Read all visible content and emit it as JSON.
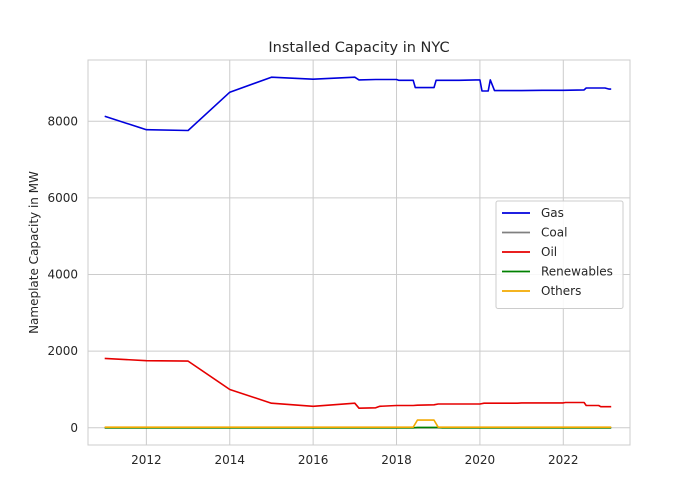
{
  "chart_data": {
    "type": "line",
    "title": "Installed Capacity in NYC",
    "xlabel": "",
    "ylabel": "Nameplate Capacity in MW",
    "xlim": [
      2010.6,
      2023.6
    ],
    "ylim": [
      -450,
      9600
    ],
    "xticks": [
      2012,
      2014,
      2016,
      2018,
      2020,
      2022
    ],
    "yticks": [
      0,
      2000,
      4000,
      6000,
      8000
    ],
    "grid": true,
    "legend_position": "center-right",
    "series": [
      {
        "name": "Gas",
        "color": "#0000dd",
        "x": [
          2011,
          2012,
          2013,
          2014,
          2015,
          2016,
          2017,
          2017.1,
          2017.5,
          2018,
          2018.05,
          2018.4,
          2018.45,
          2018.9,
          2018.95,
          2019.5,
          2019.9,
          2020.0,
          2020.05,
          2020.2,
          2020.25,
          2020.35,
          2020.4,
          2021,
          2021.5,
          2022,
          2022.5,
          2022.55,
          2023,
          2023.1,
          2023.15
        ],
        "y": [
          8130,
          7780,
          7760,
          8760,
          9150,
          9100,
          9150,
          9080,
          9090,
          9090,
          9070,
          9070,
          8880,
          8880,
          9070,
          9070,
          9080,
          9080,
          8790,
          8790,
          9080,
          8800,
          8800,
          8800,
          8810,
          8810,
          8820,
          8870,
          8870,
          8840,
          8840
        ]
      },
      {
        "name": "Coal",
        "color": "#808080",
        "x": [
          2011,
          2023.15
        ],
        "y": [
          0,
          0
        ]
      },
      {
        "name": "Oil",
        "color": "#e60000",
        "x": [
          2011,
          2012,
          2013,
          2014,
          2015,
          2016,
          2017,
          2017.1,
          2017.5,
          2017.6,
          2018,
          2018.4,
          2018.5,
          2018.9,
          2019,
          2019.5,
          2020,
          2020.1,
          2020.9,
          2021,
          2021.5,
          2022,
          2022.05,
          2022.5,
          2022.55,
          2022.85,
          2022.9,
          2023.15
        ],
        "y": [
          1810,
          1750,
          1740,
          1000,
          640,
          560,
          640,
          510,
          520,
          560,
          580,
          580,
          590,
          600,
          620,
          620,
          620,
          640,
          640,
          650,
          650,
          650,
          660,
          660,
          580,
          580,
          550,
          550
        ]
      },
      {
        "name": "Renewables",
        "color": "#008000",
        "x": [
          2011,
          2018.4,
          2018.5,
          2019.0,
          2019.1,
          2023.15
        ],
        "y": [
          0,
          0,
          10,
          10,
          0,
          0
        ]
      },
      {
        "name": "Others",
        "color": "#f2a900",
        "x": [
          2011,
          2018.4,
          2018.5,
          2018.9,
          2019.0,
          2023.15
        ],
        "y": [
          15,
          15,
          200,
          200,
          15,
          15
        ]
      }
    ]
  }
}
